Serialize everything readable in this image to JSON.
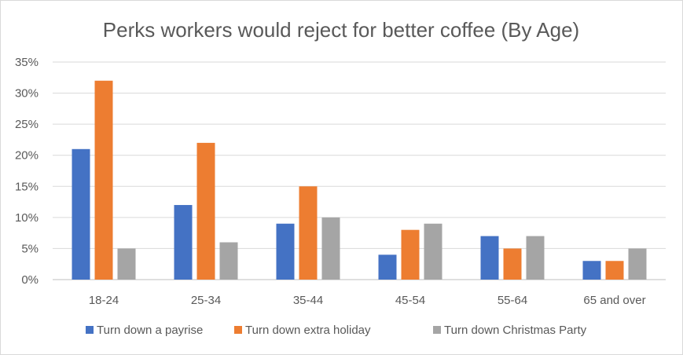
{
  "chart_data": {
    "type": "bar",
    "title": "Perks workers would reject for better coffee (By Age)",
    "xlabel": "",
    "ylabel": "",
    "categories": [
      "18-24",
      "25-34",
      "35-44",
      "45-54",
      "55-64",
      "65 and over"
    ],
    "series": [
      {
        "name": "Turn down a payrise",
        "color": "#4472c4",
        "values": [
          21,
          12,
          9,
          4,
          7,
          3
        ]
      },
      {
        "name": "Turn down extra holiday",
        "color": "#ed7d31",
        "values": [
          32,
          22,
          15,
          8,
          5,
          3
        ]
      },
      {
        "name": "Turn down Christmas Party",
        "color": "#a5a5a5",
        "values": [
          5,
          6,
          10,
          9,
          7,
          5
        ]
      }
    ],
    "ylim": [
      0,
      35
    ],
    "y_ticks": [
      "0%",
      "5%",
      "10%",
      "15%",
      "20%",
      "25%",
      "30%",
      "35%"
    ],
    "grid": true,
    "legend_position": "bottom"
  }
}
